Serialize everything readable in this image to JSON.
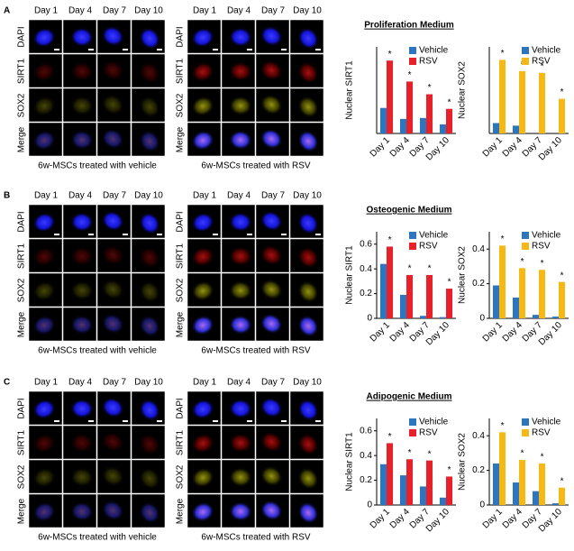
{
  "figure": {
    "panels": [
      {
        "label": "A",
        "medium": "Proliferation Medium",
        "grids": [
          {
            "caption": "6w-MSCs treated with vehicle",
            "columns": [
              "Day 1",
              "Day 4",
              "Day 7",
              "Day 10"
            ],
            "rows": [
              "DAPI",
              "SIRT1",
              "SOX2",
              "Merge"
            ]
          },
          {
            "caption": "6w-MSCs treated with RSV",
            "columns": [
              "Day 1",
              "Day 4",
              "Day 7",
              "Day 10"
            ],
            "rows": [
              "DAPI",
              "SIRT1",
              "SOX2",
              "Merge"
            ]
          }
        ]
      },
      {
        "label": "B",
        "medium": "Osteogenic Medium",
        "grids": [
          {
            "caption": "6w-MSCs treated with vehicle",
            "columns": [
              "Day 1",
              "Day 4",
              "Day 7",
              "Day 10"
            ],
            "rows": [
              "DAPI",
              "SIRT1",
              "SOX2",
              "Merge"
            ]
          },
          {
            "caption": "6w-MSCs treated with RSV",
            "columns": [
              "Day 1",
              "Day 4",
              "Day 7",
              "Day 10"
            ],
            "rows": [
              "DAPI",
              "SIRT1",
              "SOX2",
              "Merge"
            ]
          }
        ]
      },
      {
        "label": "C",
        "medium": "Adipogenic Medium",
        "grids": [
          {
            "caption": "6w-MSCs treated with vehicle",
            "columns": [
              "Day 1",
              "Day 4",
              "Day 7",
              "Day 10"
            ],
            "rows": [
              "DAPI",
              "SIRT1",
              "SOX2",
              "Merge"
            ]
          },
          {
            "caption": "6w-MSCs treated with RSV",
            "columns": [
              "Day 1",
              "Day 4",
              "Day 7",
              "Day 10"
            ],
            "rows": [
              "DAPI",
              "SIRT1",
              "SOX2",
              "Merge"
            ]
          }
        ]
      }
    ]
  },
  "chart_data": [
    {
      "type": "bar",
      "ylabel": "Nuclear SIRT1",
      "categories": [
        "Day 1",
        "Day 4",
        "Day 7",
        "Day 10"
      ],
      "series": [
        {
          "name": "Vehicle",
          "color": "#2e75c0",
          "values": [
            0.28,
            0.16,
            0.17,
            0.1
          ]
        },
        {
          "name": "RSV",
          "color": "#e8202a",
          "values": [
            0.8,
            0.57,
            0.43,
            0.27
          ]
        }
      ],
      "ylim": [
        0,
        0.95
      ],
      "significance": [
        "*",
        "*",
        "*",
        "*"
      ]
    },
    {
      "type": "bar",
      "ylabel": "Nuclear SOX2",
      "categories": [
        "Day 1",
        "Day 4",
        "Day 7",
        "Day 10"
      ],
      "series": [
        {
          "name": "Vehicle",
          "color": "#2e75c0",
          "values": [
            0.12,
            0.09,
            0,
            0
          ]
        },
        {
          "name": "RSV",
          "color": "#f5b815",
          "values": [
            0.85,
            0.72,
            0.7,
            0.4
          ]
        }
      ],
      "ylim": [
        0,
        1
      ],
      "significance": [
        "*",
        "*",
        "*",
        "*"
      ]
    },
    {
      "type": "bar",
      "ylabel": "Nuclear SIRT1",
      "categories": [
        "Day 1",
        "Day 4",
        "Day 7",
        "Day 10"
      ],
      "series": [
        {
          "name": "Vehicle",
          "color": "#2e75c0",
          "values": [
            0.44,
            0.19,
            0.02,
            0.01
          ]
        },
        {
          "name": "RSV",
          "color": "#e8202a",
          "values": [
            0.58,
            0.35,
            0.35,
            0.24
          ]
        }
      ],
      "ylim": [
        0,
        0.7
      ],
      "yticks": [
        0,
        0.2,
        0.4,
        0.6
      ],
      "significance": [
        "*",
        "*",
        "*",
        "*"
      ]
    },
    {
      "type": "bar",
      "ylabel": "Nuclear SOX2",
      "categories": [
        "Day 1",
        "Day 4",
        "Day 7",
        "Day 10"
      ],
      "series": [
        {
          "name": "Vehicle",
          "color": "#2e75c0",
          "values": [
            0.19,
            0.12,
            0.02,
            0.01
          ]
        },
        {
          "name": "RSV",
          "color": "#f5b815",
          "values": [
            0.42,
            0.29,
            0.28,
            0.21
          ]
        }
      ],
      "ylim": [
        0,
        0.5
      ],
      "yticks": [
        0,
        0.2,
        0.4
      ],
      "significance": [
        "*",
        "*",
        "*",
        "*"
      ]
    },
    {
      "type": "bar",
      "ylabel": "Nuclear SIRT1",
      "categories": [
        "Day 1",
        "Day 4",
        "Day 7",
        "Day 10"
      ],
      "series": [
        {
          "name": "Vehicle",
          "color": "#2e75c0",
          "values": [
            0.33,
            0.24,
            0.15,
            0.06
          ]
        },
        {
          "name": "RSV",
          "color": "#e8202a",
          "values": [
            0.5,
            0.37,
            0.36,
            0.23
          ]
        }
      ],
      "ylim": [
        0,
        0.7
      ],
      "yticks": [
        0,
        0.2,
        0.4,
        0.6
      ],
      "significance": [
        "*",
        "*",
        "*",
        "*"
      ]
    },
    {
      "type": "bar",
      "ylabel": "Nuclear SOX2",
      "categories": [
        "Day 1",
        "Day 4",
        "Day 7",
        "Day 10"
      ],
      "series": [
        {
          "name": "Vehicle",
          "color": "#2e75c0",
          "values": [
            0.24,
            0.13,
            0.08,
            0.01
          ]
        },
        {
          "name": "RSV",
          "color": "#f5b815",
          "values": [
            0.42,
            0.26,
            0.24,
            0.1
          ]
        }
      ],
      "ylim": [
        0,
        0.5
      ],
      "yticks": [
        0,
        0.2,
        0.4
      ],
      "significance": [
        "*",
        "*",
        "*",
        "*"
      ]
    }
  ]
}
